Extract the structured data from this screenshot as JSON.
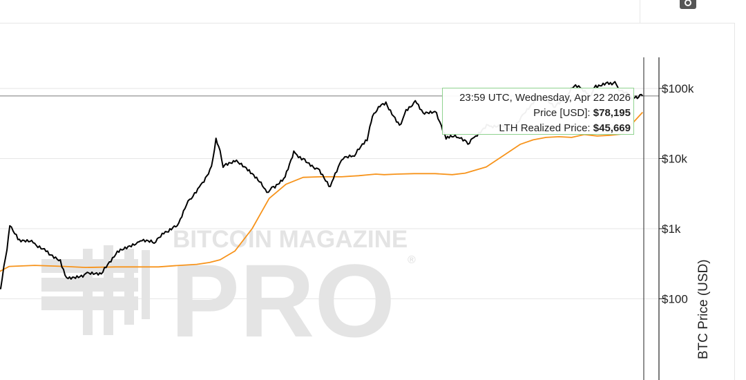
{
  "chart_data": {
    "type": "line",
    "title": "",
    "xlabel": "",
    "ylabel": "BTC Price (USD)",
    "y_scale": "log",
    "ylim": [
      10,
      200000
    ],
    "y_ticks": [
      {
        "value": 100,
        "label": "$100"
      },
      {
        "value": 1000,
        "label": "$1k"
      },
      {
        "value": 10000,
        "label": "$10k"
      },
      {
        "value": 100000,
        "label": "$100k"
      }
    ],
    "xlim": [
      "2013-05-01",
      "2026-05-15"
    ],
    "grid": true,
    "series": [
      {
        "key": "price",
        "color": "#000000",
        "x": [
          "2013-05-01",
          "2013-08-01",
          "2013-10-01",
          "2013-11-15",
          "2013-12-05",
          "2014-02-01",
          "2014-06-01",
          "2014-09-01",
          "2014-12-01",
          "2015-01-15",
          "2015-06-01",
          "2015-10-01",
          "2016-01-01",
          "2016-06-15",
          "2016-10-01",
          "2017-01-01",
          "2017-03-15",
          "2017-06-01",
          "2017-09-01",
          "2017-11-15",
          "2017-12-17",
          "2018-01-15",
          "2018-02-06",
          "2018-05-01",
          "2018-08-01",
          "2018-11-25",
          "2018-12-15",
          "2019-02-01",
          "2019-04-15",
          "2019-06-26",
          "2019-09-01",
          "2019-12-15",
          "2020-03-13",
          "2020-06-01",
          "2020-09-01",
          "2020-12-01",
          "2021-01-08",
          "2021-03-13",
          "2021-04-14",
          "2021-07-20",
          "2021-09-05",
          "2021-11-10",
          "2022-01-15",
          "2022-03-30",
          "2022-06-18",
          "2022-09-01",
          "2022-11-21",
          "2023-01-15",
          "2023-04-15",
          "2023-08-01",
          "2023-10-01",
          "2023-12-15",
          "2024-03-14",
          "2024-05-20",
          "2024-08-05",
          "2024-10-15",
          "2024-12-17",
          "2025-02-01",
          "2025-04-08",
          "2025-05-22",
          "2025-08-14",
          "2025-10-06",
          "2025-11-15",
          "2025-12-20",
          "2026-02-05",
          "2026-03-15",
          "2026-04-22"
        ],
        "y": [
          115,
          95,
          140,
          500,
          1100,
          700,
          620,
          480,
          360,
          200,
          230,
          240,
          430,
          650,
          620,
          900,
          1100,
          2500,
          4300,
          7800,
          19500,
          13000,
          7500,
          9000,
          6700,
          3800,
          3300,
          4000,
          5200,
          12800,
          10000,
          7200,
          4000,
          9500,
          10800,
          18000,
          40000,
          59000,
          64000,
          30000,
          50000,
          67000,
          43000,
          47000,
          19000,
          20000,
          16000,
          21000,
          30000,
          29000,
          27000,
          42000,
          71000,
          69000,
          54000,
          67000,
          106000,
          102000,
          78000,
          111000,
          123000,
          125000,
          93000,
          88000,
          70000,
          72000,
          78195
        ]
      },
      {
        "key": "lth",
        "color": "#f7931a",
        "x": [
          "2013-05-01",
          "2013-07-01",
          "2013-12-01",
          "2014-06-01",
          "2015-01-01",
          "2015-06-01",
          "2016-01-01",
          "2016-06-01",
          "2016-11-01",
          "2017-04-01",
          "2017-08-01",
          "2017-11-01",
          "2018-01-15",
          "2018-05-01",
          "2018-09-01",
          "2019-01-01",
          "2019-05-01",
          "2019-09-01",
          "2020-01-01",
          "2020-06-01",
          "2020-10-01",
          "2021-02-01",
          "2021-04-01",
          "2021-07-01",
          "2021-11-01",
          "2022-04-01",
          "2022-08-01",
          "2022-11-01",
          "2023-04-01",
          "2023-08-01",
          "2023-12-01",
          "2024-03-01",
          "2024-06-01",
          "2024-09-01",
          "2024-12-01",
          "2025-03-01",
          "2025-06-01",
          "2025-09-01",
          "2025-12-01",
          "2026-04-22"
        ],
        "y": [
          80,
          200,
          290,
          300,
          290,
          280,
          285,
          285,
          285,
          300,
          310,
          330,
          360,
          480,
          1000,
          2700,
          4300,
          5400,
          5500,
          5500,
          5700,
          6000,
          5900,
          6000,
          6100,
          6100,
          5900,
          6200,
          7600,
          11000,
          16000,
          18500,
          20000,
          20500,
          20000,
          22000,
          21000,
          21500,
          22500,
          45669
        ]
      }
    ],
    "tooltip": {
      "time": "23:59 UTC, Wednesday, Apr 22 2026",
      "price_label": "Price [USD]:",
      "price_value": "$78,195",
      "lth_label": "LTH Realized Price:",
      "lth_value": "$45,669"
    },
    "crosshair": {
      "x": "2026-04-22",
      "y": 78195
    }
  },
  "watermark": {
    "line1": "BITCOIN MAGAZINE",
    "line2": "PRO",
    "registered": "®"
  },
  "icons": {
    "camera": "camera-icon"
  }
}
